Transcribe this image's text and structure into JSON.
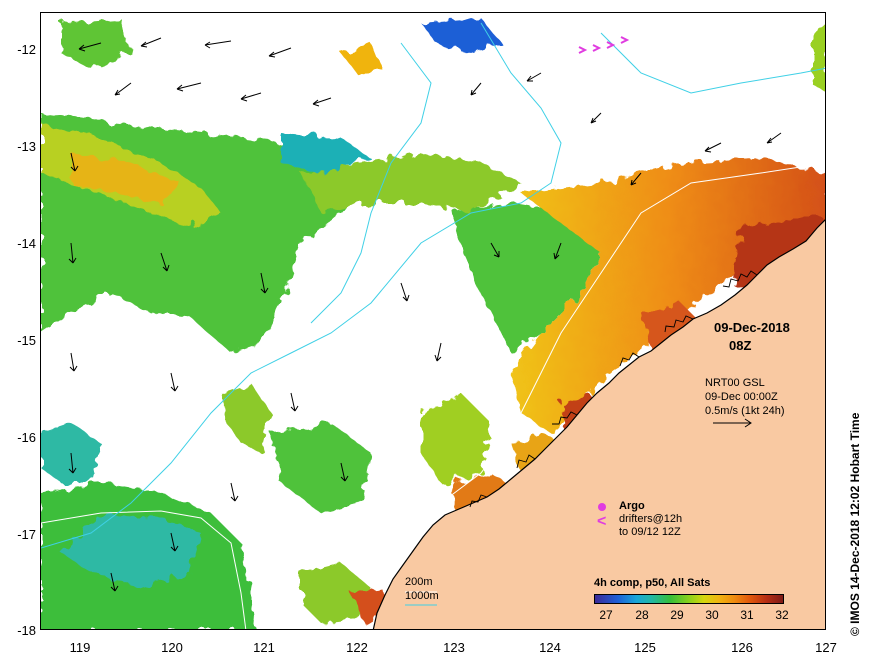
{
  "map": {
    "y_ticks": [
      "-12",
      "-13",
      "-14",
      "-15",
      "-16",
      "-17",
      "-18"
    ],
    "x_ticks": [
      "119",
      "120",
      "121",
      "122",
      "123",
      "124",
      "125",
      "126",
      "127"
    ],
    "lat_range": [
      -18.0,
      -11.65
    ],
    "lon_range": [
      118.62,
      127.0
    ],
    "colors": {
      "land": "#f9c9a2",
      "coast": "#000000",
      "isobath": "#3fd0e6",
      "drifter": "#e03ce0"
    }
  },
  "annotation": {
    "date": "09-Dec-2018",
    "time": "08Z",
    "current_product": "NRT00 GSL",
    "current_time": "09-Dec 00:00Z",
    "current_scale": "0.5m/s (1kt 24h)"
  },
  "legend": {
    "argo": "Argo",
    "drifters": "drifters@12h",
    "drifters_to": "to 09/12 12Z",
    "isobath_200": "200m",
    "isobath_1000": "1000m"
  },
  "colorbar": {
    "title": "4h comp, p50, All Sats",
    "ticks": [
      "27",
      "28",
      "29",
      "30",
      "31",
      "32"
    ]
  },
  "credit": "© IMOS 14-Dec-2018 12:02 Hobart Time"
}
